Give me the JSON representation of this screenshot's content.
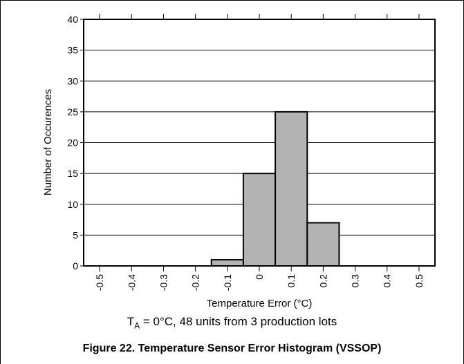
{
  "chart_data": {
    "type": "bar",
    "categories": [
      "-0.5",
      "-0.4",
      "-0.3",
      "-0.2",
      "-0.1",
      "0",
      "0.1",
      "0.2",
      "0.3",
      "0.4",
      "0.5"
    ],
    "values": [
      0,
      0,
      0,
      0,
      1,
      15,
      25,
      7,
      0,
      0,
      0
    ],
    "yticks": [
      "0",
      "5",
      "10",
      "15",
      "20",
      "25",
      "30",
      "35",
      "40"
    ],
    "ylim": [
      0,
      40
    ],
    "xlim": [
      -0.55,
      0.55
    ],
    "ylabel": "Number of Occurences",
    "xlabel": "Temperature Error (°C)",
    "grid": "horizontal",
    "bar_color": "#b3b3b3",
    "edge_color": "#000000"
  },
  "note": {
    "symbol": "T",
    "subscript": "A",
    "text": " = 0°C, 48 units from 3 production lots"
  },
  "caption": "Figure 22. Temperature Sensor Error Histogram (VSSOP)"
}
